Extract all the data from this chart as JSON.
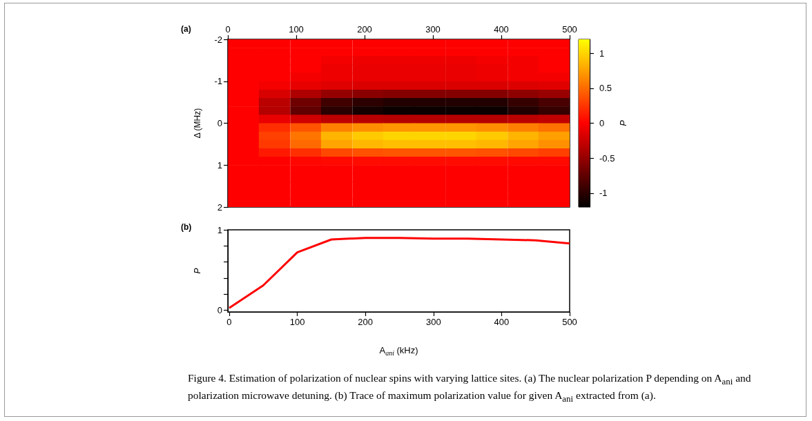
{
  "chart_data": [
    {
      "type": "heatmap",
      "ylabel": "Δ (MHz)",
      "clabel": "P",
      "annotations": [
        "(a)"
      ],
      "xlim": [
        0,
        500
      ],
      "xticks": [
        0,
        100,
        200,
        300,
        400,
        500
      ],
      "ylim": [
        2,
        -2
      ],
      "yticks": [
        -2,
        -1,
        0,
        1,
        2
      ],
      "clim": [
        -1.2,
        1.2
      ],
      "cticks": [
        -1,
        -0.5,
        0,
        0.5,
        1
      ],
      "x": [
        23,
        68,
        114,
        159,
        205,
        250,
        295,
        341,
        386,
        432,
        477
      ],
      "y": [
        -1.9,
        -1.7,
        -1.5,
        -1.3,
        -1.1,
        -0.9,
        -0.7,
        -0.5,
        -0.3,
        -0.1,
        0.1,
        0.3,
        0.5,
        0.7,
        0.9,
        1.1,
        1.3,
        1.5,
        1.7,
        1.9
      ],
      "cells": [
        [
          0,
          0,
          0,
          0,
          0,
          0,
          0,
          0,
          0,
          0,
          0
        ],
        [
          0,
          0,
          0,
          0,
          0,
          0,
          0,
          0,
          0,
          0,
          0
        ],
        [
          0,
          0,
          0,
          -0.05,
          -0.08,
          -0.08,
          -0.08,
          -0.08,
          -0.05,
          -0.05,
          0
        ],
        [
          0,
          0,
          0,
          -0.08,
          -0.1,
          -0.1,
          -0.1,
          -0.1,
          -0.08,
          -0.05,
          0
        ],
        [
          0,
          0,
          -0.05,
          -0.08,
          -0.1,
          -0.1,
          -0.1,
          -0.1,
          -0.08,
          -0.05,
          -0.05
        ],
        [
          0,
          -0.05,
          -0.11,
          -0.15,
          -0.17,
          -0.17,
          -0.17,
          -0.17,
          -0.17,
          -0.16,
          -0.14
        ],
        [
          0,
          -0.18,
          -0.38,
          -0.5,
          -0.55,
          -0.58,
          -0.58,
          -0.58,
          -0.58,
          -0.53,
          -0.48
        ],
        [
          0,
          -0.32,
          -0.68,
          -0.9,
          -0.99,
          -1.04,
          -1.04,
          -1.04,
          -1.04,
          -0.95,
          -0.86
        ],
        [
          0,
          -0.35,
          -0.75,
          -1,
          -1.1,
          -1.15,
          -1.15,
          -1.15,
          -1.15,
          -1.05,
          -0.95
        ],
        [
          0,
          -0.1,
          -0.22,
          -0.3,
          -0.33,
          -0.35,
          -0.35,
          -0.35,
          -0.35,
          -0.32,
          -0.29
        ],
        [
          0,
          0.21,
          0.39,
          0.6,
          0.67,
          0.7,
          0.7,
          0.7,
          0.67,
          0.6,
          0.53
        ],
        [
          0,
          0.3,
          0.55,
          0.85,
          0.95,
          1,
          1,
          1,
          0.95,
          0.85,
          0.75
        ],
        [
          0,
          0.27,
          0.5,
          0.77,
          0.86,
          0.9,
          0.9,
          0.9,
          0.86,
          0.77,
          0.68
        ],
        [
          0,
          0.12,
          0.22,
          0.34,
          0.38,
          0.4,
          0.4,
          0.4,
          0.38,
          0.34,
          0.3
        ],
        [
          0,
          0,
          0.03,
          0.04,
          0.05,
          0.05,
          0.05,
          0.05,
          0.05,
          0.04,
          0.04
        ],
        [
          0,
          0,
          0,
          0,
          0,
          0,
          0,
          0,
          0,
          0,
          0
        ],
        [
          0,
          0,
          0,
          0,
          0,
          0,
          0,
          0,
          0,
          0,
          0
        ],
        [
          0,
          0,
          0,
          0,
          0,
          0,
          0,
          0,
          0,
          0,
          0
        ],
        [
          0,
          0,
          0,
          0,
          0,
          0,
          0,
          0,
          0,
          0,
          0
        ],
        [
          0,
          0,
          0,
          0,
          0,
          0,
          0,
          0,
          0,
          0,
          0
        ]
      ]
    },
    {
      "type": "line",
      "xlabel": "A$_{ani}$ (kHz)",
      "ylabel": "P",
      "marker": "none",
      "annotations": [
        "(b)",
        "Figure 4. Estimation of polarization of nuclear spins with varying lattice sites. (a) The nuclear polarization P depending on A$_{ani}$ and polarization microwave detuning. (b) Trace of maximum polarization value for given A$_{ani}$ extracted from (a)."
      ],
      "xlim": [
        -2,
        500
      ],
      "xticks": [
        0,
        100,
        200,
        300,
        400,
        500
      ],
      "ylim": [
        -0.02,
        1
      ],
      "yticks": [
        0,
        {
          "value": 0.2,
          "label": null
        },
        {
          "value": 0.4,
          "label": null
        },
        {
          "value": 0.6,
          "label": null
        },
        {
          "value": 0.8,
          "label": null
        },
        1
      ],
      "x": [
        0,
        50,
        100,
        150,
        200,
        250,
        300,
        350,
        400,
        450,
        500
      ],
      "series": [
        {
          "color": "#ff0000",
          "values": [
            0.03,
            0.31,
            0.72,
            0.88,
            0.9,
            0.9,
            0.89,
            0.89,
            0.88,
            0.87,
            0.83
          ]
        }
      ]
    }
  ]
}
